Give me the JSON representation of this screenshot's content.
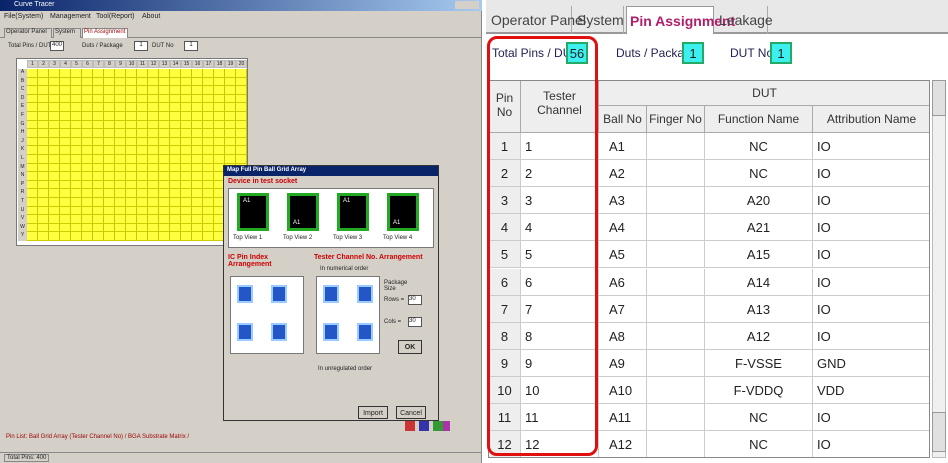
{
  "left_window": {
    "title": "Curve Tracer",
    "menu": [
      "File(System)",
      "Management",
      "Tool(Report)",
      "About"
    ],
    "tabs": [
      "Operator Panel",
      "System",
      "Pin Assignment"
    ],
    "fields": [
      {
        "label": "Total Pins / DUT",
        "value": "400"
      },
      {
        "label": "Duts / Package",
        "value": "1"
      },
      {
        "label": "DUT No",
        "value": "1"
      }
    ],
    "grid": {
      "columns": [
        1,
        2,
        3,
        4,
        5,
        6,
        7,
        8,
        9,
        10,
        11,
        12,
        13,
        14,
        15,
        16,
        17,
        18,
        19,
        20
      ],
      "rows": [
        "A",
        "B",
        "C",
        "D",
        "E",
        "F",
        "G",
        "H",
        "J",
        "K",
        "L",
        "M",
        "N",
        "P",
        "R",
        "T",
        "U",
        "V",
        "W",
        "Y"
      ]
    },
    "dialog": {
      "title": "Map Full Pin Ball Grid Array",
      "device_heading": "Device in test socket",
      "views": [
        "Top View 1",
        "Top View 2",
        "Top View 3",
        "Top View 4"
      ],
      "chip_label": "A1",
      "pin_index_heading": "IC Pin Index Arrangement",
      "channel_heading": "Tester Channel No. Arrangement",
      "numerical": "In numerical order",
      "package_size": "Package Size",
      "rows_label": "Rows =",
      "rows_value": "30",
      "cols_label": "Cols =",
      "cols_value": "30",
      "ok": "OK",
      "unregulated": "In unregulated order",
      "import": "Import",
      "cancel": "Cancel"
    },
    "bottom_tabs": "Pin List: Ball Grid Array (Tester Channel No) / BGA Substrate Matrix /",
    "status": "Total Pins: 400"
  },
  "right_panel": {
    "tabs": [
      "Operator Panel",
      "System",
      "Pin Assignment",
      "Leakage"
    ],
    "fields": [
      {
        "label": "Total Pins / DUT",
        "value": "56"
      },
      {
        "label": "Duts / Package",
        "value": "1"
      },
      {
        "label": "DUT No",
        "value": "1"
      }
    ],
    "table": {
      "header": {
        "pin_no": "Pin No",
        "tester_channel": "Tester Channel",
        "dut": "DUT",
        "columns": [
          "Ball No",
          "Finger No",
          "Function Name",
          "Attribution Name"
        ]
      },
      "rows": [
        [
          1,
          1,
          "A1",
          "NC",
          "IO"
        ],
        [
          2,
          2,
          "A2",
          "NC",
          "IO"
        ],
        [
          3,
          3,
          "A3",
          "A20",
          "IO"
        ],
        [
          4,
          4,
          "A4",
          "A21",
          "IO"
        ],
        [
          5,
          5,
          "A5",
          "A15",
          "IO"
        ],
        [
          6,
          6,
          "A6",
          "A14",
          "IO"
        ],
        [
          7,
          7,
          "A7",
          "A13",
          "IO"
        ],
        [
          8,
          8,
          "A8",
          "A12",
          "IO"
        ],
        [
          9,
          9,
          "A9",
          "F-VSSE",
          "GND"
        ],
        [
          10,
          10,
          "A10",
          "F-VDDQ",
          "VDD"
        ],
        [
          11,
          11,
          "A11",
          "NC",
          "IO"
        ],
        [
          12,
          12,
          "A12",
          "NC",
          "IO"
        ]
      ]
    }
  }
}
